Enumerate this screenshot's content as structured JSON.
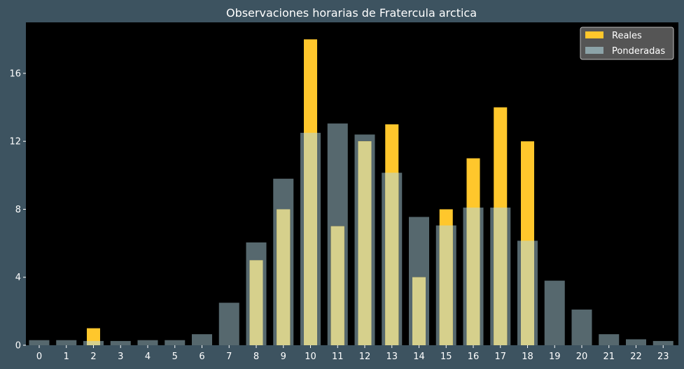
{
  "colors": {
    "figure_background": "#3d5360",
    "plot_background": "#000000",
    "reales": "#ffc72c",
    "ponderadas": "#8ca3a8",
    "overlap": "#d6d08c",
    "text": "#ffffff"
  },
  "chart_data": {
    "type": "bar",
    "title": "Observaciones horarias de Fratercula arctica",
    "xlabel": "",
    "ylabel": "",
    "categories": [
      "0",
      "1",
      "2",
      "3",
      "4",
      "5",
      "6",
      "7",
      "8",
      "9",
      "10",
      "11",
      "12",
      "13",
      "14",
      "15",
      "16",
      "17",
      "18",
      "19",
      "20",
      "21",
      "22",
      "23"
    ],
    "ylim": [
      0,
      19
    ],
    "yticks": [
      0,
      4,
      8,
      12,
      16
    ],
    "grid": false,
    "legend_position": "top-right",
    "series": [
      {
        "name": "Reales",
        "color": "#ffc72c",
        "values": [
          0,
          0,
          1,
          0,
          0,
          0,
          0,
          0,
          5,
          8,
          18,
          7,
          12,
          13,
          4,
          8,
          11,
          14,
          12,
          0,
          0,
          0,
          0,
          0
        ]
      },
      {
        "name": "Ponderadas",
        "color": "#8ca3a8",
        "values": [
          0.3,
          0.3,
          0.25,
          0.25,
          0.3,
          0.3,
          0.65,
          2.5,
          6.05,
          9.8,
          12.5,
          13.05,
          12.4,
          10.15,
          7.55,
          7.05,
          8.1,
          8.1,
          6.15,
          3.8,
          2.1,
          0.65,
          0.35,
          0.25
        ]
      }
    ]
  }
}
